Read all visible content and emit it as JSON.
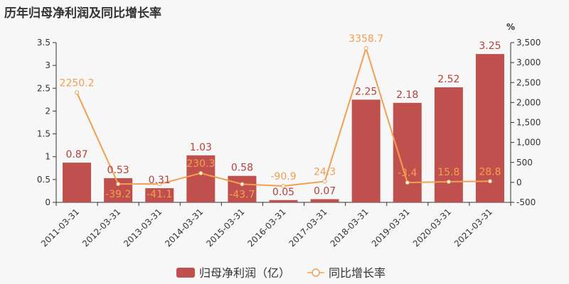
{
  "title": "历年归母净利润及同比增长率",
  "colors": {
    "bar": "#c0504d",
    "line": "#f0a050",
    "bar_label": "#b5403d",
    "line_label": "#f0a050"
  },
  "chart_data": {
    "type": "bar+line",
    "title": "历年归母净利润及同比增长率",
    "categories": [
      "2011-03-31",
      "2012-03-31",
      "2013-03-31",
      "2014-03-31",
      "2015-03-31",
      "2016-03-31",
      "2017-03-31",
      "2018-03-31",
      "2019-03-31",
      "2020-03-31",
      "2021-03-31"
    ],
    "series": [
      {
        "name": "归母净利润（亿）",
        "type": "bar",
        "axis": "left",
        "values": [
          0.87,
          0.53,
          0.31,
          1.03,
          0.58,
          0.05,
          0.07,
          2.25,
          2.18,
          2.52,
          3.25
        ]
      },
      {
        "name": "同比增长率",
        "type": "line",
        "axis": "right",
        "values": [
          2250.2,
          -39.2,
          -41.1,
          230.3,
          -43.7,
          -90.9,
          24.3,
          3358.7,
          -3.4,
          15.8,
          28.8
        ]
      }
    ],
    "y_left": {
      "range": [
        0,
        3.5
      ],
      "ticks": [
        "0",
        "0.5",
        "1",
        "1.5",
        "2",
        "2.5",
        "3",
        "3.5"
      ]
    },
    "y_right": {
      "label": "%",
      "range": [
        -500,
        3500
      ],
      "ticks": [
        "-500",
        "0",
        "500",
        "1,000",
        "1,500",
        "2,000",
        "2,500",
        "3,000",
        "3,500"
      ]
    },
    "grid": false,
    "legend": "bottom"
  }
}
